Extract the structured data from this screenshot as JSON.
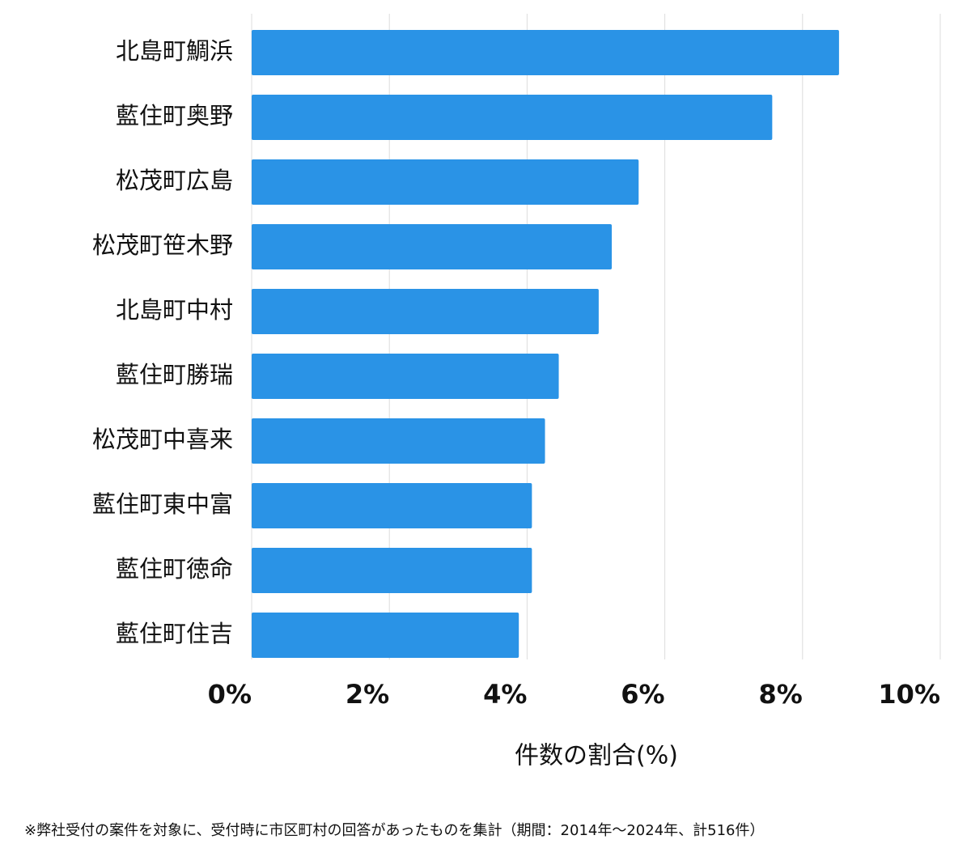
{
  "chart_data": {
    "type": "hbar",
    "categories": [
      "北島町鯛浜",
      "藍住町奥野",
      "松茂町広島",
      "松茂町笹木野",
      "北島町中村",
      "藍住町勝瑞",
      "松茂町中喜来",
      "藍住町東中富",
      "藍住町徳命",
      "藍住町住吉"
    ],
    "values": [
      8.53,
      7.56,
      5.62,
      5.23,
      5.04,
      4.46,
      4.26,
      4.07,
      4.07,
      3.88
    ],
    "color": "#2a93e6",
    "xlim": [
      0,
      10
    ],
    "xticks": [
      {
        "value": 0,
        "label": "0%"
      },
      {
        "value": 2,
        "label": "2%"
      },
      {
        "value": 4,
        "label": "4%"
      },
      {
        "value": 6,
        "label": "6%"
      },
      {
        "value": 8,
        "label": "8%"
      },
      {
        "value": 10,
        "label": "10%"
      }
    ],
    "grid": true,
    "x_label": "件数の割合(%)",
    "footnote": "※弊社受付の案件を対象に、受付時に市区町村の回答があったものを集計（期間：2014年～2024年、計516件）"
  }
}
